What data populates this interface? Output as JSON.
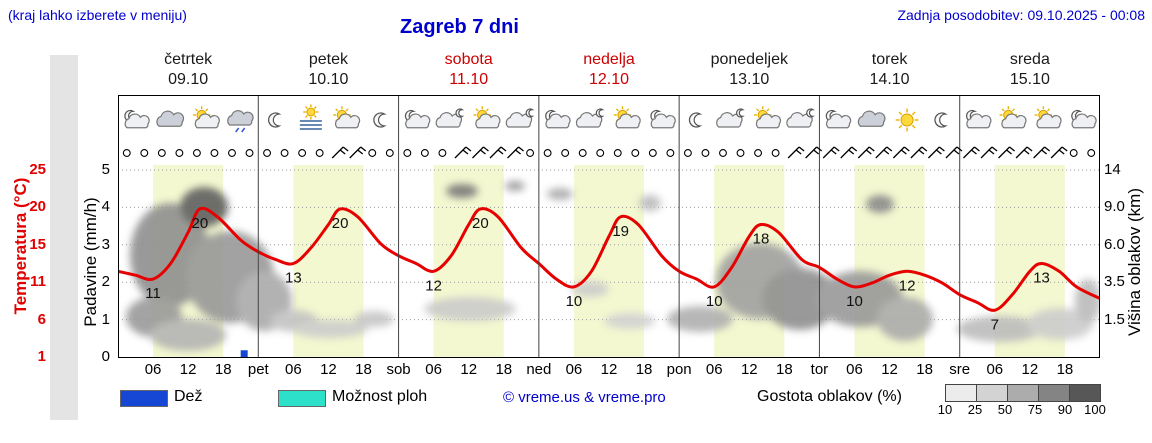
{
  "header": {
    "hint": "(kraj lahko izberete v meniju)",
    "title": "Zagreb 7 dni",
    "updated": "Zadnja posodobitev: 09.10.2025 - 00:08"
  },
  "colors": {
    "link_blue": "#0000cd",
    "temp_red": "#e00000",
    "weekend_red": "#cc0000",
    "rain_blue": "#1546d4",
    "showers_cyan": "#2ce0ca",
    "day_band_yellow": "#f4f8d0",
    "grid_gray": "#999999"
  },
  "days": [
    {
      "name": "četrtek",
      "date": "09.10",
      "weekend": false,
      "icons": [
        "moon-cloud",
        "cloud",
        "sun-cloud",
        "cloud-drizzle"
      ]
    },
    {
      "name": "petek",
      "date": "10.10",
      "weekend": false,
      "icons": [
        "moon",
        "fog-sun",
        "sun-cloud",
        "moon"
      ]
    },
    {
      "name": "sobota",
      "date": "11.10",
      "weekend": true,
      "icons": [
        "moon-cloud",
        "cloud-moon",
        "sun-cloud",
        "cloud-moon"
      ]
    },
    {
      "name": "nedelja",
      "date": "12.10",
      "weekend": true,
      "icons": [
        "moon-cloud",
        "cloud-moon",
        "sun-cloud",
        "moon-cloud"
      ]
    },
    {
      "name": "ponedeljek",
      "date": "13.10",
      "weekend": false,
      "icons": [
        "moon",
        "cloud-moon",
        "sun-cloud",
        "cloud-moon"
      ]
    },
    {
      "name": "torek",
      "date": "14.10",
      "weekend": false,
      "icons": [
        "moon-cloud",
        "cloud",
        "sun",
        "moon"
      ]
    },
    {
      "name": "sreda",
      "date": "15.10",
      "weekend": false,
      "icons": [
        "moon-cloud",
        "sun-cloud",
        "sun-cloud",
        "moon-cloud"
      ]
    }
  ],
  "axes": {
    "temp_label": "Temperatura (°C)",
    "temp_ticks": [
      "25",
      "20",
      "15",
      "11",
      "6",
      "1"
    ],
    "precip_label": "Padavine (mm/h)",
    "precip_ticks": [
      "5",
      "4",
      "3",
      "2",
      "1",
      "0"
    ],
    "cloud_label": "Višina oblakov (km)",
    "cloud_ticks": [
      "14",
      "9.0",
      "6.0",
      "3.5",
      "1.5"
    ],
    "time_ticks": [
      "06",
      "12",
      "18"
    ],
    "day_abbrevs": [
      "pet",
      "sob",
      "ned",
      "pon",
      "tor",
      "sre"
    ]
  },
  "legend": {
    "rain": "Dež",
    "showers": "Možnost ploh",
    "credit": "© vreme.us & vreme.pro",
    "cloud_density": "Gostota oblakov (%)",
    "density_ticks": [
      "10",
      "25",
      "50",
      "75",
      "90",
      "100"
    ],
    "density_colors": [
      "#ececec",
      "#d3d3d3",
      "#acacac",
      "#848484",
      "#575757"
    ]
  },
  "chart_data": {
    "type": "line",
    "title": "Zagreb 7 dni",
    "x_unit": "hours",
    "x_range": [
      0,
      168
    ],
    "ylim_precip": [
      0,
      5
    ],
    "temp_series": {
      "name": "Temperatura (°C)",
      "color": "#e60000",
      "points": [
        [
          0,
          12
        ],
        [
          3,
          11.5
        ],
        [
          6,
          11
        ],
        [
          9,
          13
        ],
        [
          12,
          17
        ],
        [
          14,
          20
        ],
        [
          17,
          19
        ],
        [
          21,
          16
        ],
        [
          24,
          14.5
        ],
        [
          27,
          13.5
        ],
        [
          30,
          13
        ],
        [
          33,
          15
        ],
        [
          36,
          18
        ],
        [
          38,
          20
        ],
        [
          41,
          19
        ],
        [
          45,
          15.5
        ],
        [
          48,
          14
        ],
        [
          51,
          13
        ],
        [
          54,
          12
        ],
        [
          57,
          14
        ],
        [
          60,
          18
        ],
        [
          62,
          20
        ],
        [
          65,
          19
        ],
        [
          69,
          15
        ],
        [
          72,
          13
        ],
        [
          75,
          11
        ],
        [
          78,
          10
        ],
        [
          81,
          12
        ],
        [
          84,
          16.5
        ],
        [
          86,
          19
        ],
        [
          89,
          18
        ],
        [
          93,
          14
        ],
        [
          96,
          12
        ],
        [
          99,
          11
        ],
        [
          102,
          10
        ],
        [
          105,
          12.5
        ],
        [
          108,
          16.5
        ],
        [
          110,
          18
        ],
        [
          113,
          17
        ],
        [
          117,
          13.5
        ],
        [
          120,
          12.5
        ],
        [
          123,
          11
        ],
        [
          126,
          10
        ],
        [
          129,
          10.5
        ],
        [
          132,
          11.5
        ],
        [
          135,
          12
        ],
        [
          138,
          11.5
        ],
        [
          141,
          10.5
        ],
        [
          144,
          9
        ],
        [
          147,
          8
        ],
        [
          150,
          7
        ],
        [
          153,
          9
        ],
        [
          156,
          12
        ],
        [
          158,
          13
        ],
        [
          161,
          12
        ],
        [
          164,
          10
        ],
        [
          168,
          8.5
        ]
      ]
    },
    "temp_labels": [
      {
        "t": 6,
        "v": 11
      },
      {
        "t": 14,
        "v": 20
      },
      {
        "t": 30,
        "v": 13
      },
      {
        "t": 38,
        "v": 20
      },
      {
        "t": 54,
        "v": 12
      },
      {
        "t": 62,
        "v": 20
      },
      {
        "t": 78,
        "v": 10
      },
      {
        "t": 86,
        "v": 19
      },
      {
        "t": 102,
        "v": 10
      },
      {
        "t": 110,
        "v": 18
      },
      {
        "t": 126,
        "v": 10
      },
      {
        "t": 135,
        "v": 12
      },
      {
        "t": 150,
        "v": 7
      },
      {
        "t": 158,
        "v": 13
      }
    ],
    "precip_bars": [
      {
        "t": 21.5,
        "v": 0.18
      }
    ],
    "wind": [
      "o",
      "o",
      "o",
      "o",
      "o",
      "o",
      "o",
      "o",
      "o",
      "o",
      "o",
      "o",
      "b",
      "b",
      "o",
      "o",
      "o",
      "o",
      "o",
      "b",
      "b",
      "b",
      "b",
      "o",
      "o",
      "o",
      "o",
      "o",
      "o",
      "o",
      "o",
      "o",
      "o",
      "o",
      "o",
      "o",
      "o",
      "o",
      "b",
      "b",
      "b",
      "b",
      "b",
      "b",
      "b",
      "b",
      "b",
      "b",
      "b",
      "b",
      "b",
      "b",
      "b",
      "b",
      "o",
      "o"
    ],
    "cloud_patches": [
      {
        "x": 52,
        "y": 160,
        "rx": 40,
        "ry": 52,
        "c": "#8f8f8f"
      },
      {
        "x": 86,
        "y": 112,
        "rx": 24,
        "ry": 20,
        "c": "#5f5f5f"
      },
      {
        "x": 112,
        "y": 182,
        "rx": 44,
        "ry": 46,
        "c": "#989898"
      },
      {
        "x": 146,
        "y": 206,
        "rx": 28,
        "ry": 30,
        "c": "#aaaaaa"
      },
      {
        "x": 36,
        "y": 222,
        "rx": 28,
        "ry": 20,
        "c": "#9a9a9a"
      },
      {
        "x": 70,
        "y": 240,
        "rx": 38,
        "ry": 16,
        "c": "#b4b4b4"
      },
      {
        "x": 176,
        "y": 226,
        "rx": 24,
        "ry": 11,
        "c": "#c2c2c2"
      },
      {
        "x": 212,
        "y": 234,
        "rx": 38,
        "ry": 9,
        "c": "#cccccc"
      },
      {
        "x": 256,
        "y": 224,
        "rx": 20,
        "ry": 8,
        "c": "#c6c6c6"
      },
      {
        "x": 344,
        "y": 96,
        "rx": 16,
        "ry": 7,
        "c": "#777777"
      },
      {
        "x": 352,
        "y": 214,
        "rx": 46,
        "ry": 12,
        "c": "#cbcbcb"
      },
      {
        "x": 397,
        "y": 91,
        "rx": 10,
        "ry": 5,
        "c": "#999999"
      },
      {
        "x": 442,
        "y": 99,
        "rx": 13,
        "ry": 6,
        "c": "#aaaaaa"
      },
      {
        "x": 472,
        "y": 194,
        "rx": 19,
        "ry": 8,
        "c": "#cccccc"
      },
      {
        "x": 512,
        "y": 226,
        "rx": 26,
        "ry": 8,
        "c": "#d2d2d2"
      },
      {
        "x": 532,
        "y": 108,
        "rx": 11,
        "ry": 8,
        "c": "#bbbbbb"
      },
      {
        "x": 582,
        "y": 224,
        "rx": 33,
        "ry": 13,
        "c": "#b0b0b0"
      },
      {
        "x": 642,
        "y": 186,
        "rx": 44,
        "ry": 38,
        "c": "#a0a0a0"
      },
      {
        "x": 682,
        "y": 204,
        "rx": 38,
        "ry": 31,
        "c": "#8f8f8f"
      },
      {
        "x": 742,
        "y": 204,
        "rx": 43,
        "ry": 28,
        "c": "#999999"
      },
      {
        "x": 762,
        "y": 109,
        "rx": 14,
        "ry": 9,
        "c": "#8a8a8a"
      },
      {
        "x": 787,
        "y": 224,
        "rx": 28,
        "ry": 22,
        "c": "#ababab"
      },
      {
        "x": 882,
        "y": 234,
        "rx": 43,
        "ry": 13,
        "c": "#bcbcbc"
      },
      {
        "x": 942,
        "y": 229,
        "rx": 33,
        "ry": 16,
        "c": "#cccccc"
      },
      {
        "x": 970,
        "y": 206,
        "rx": 13,
        "ry": 22,
        "c": "#bbbbbb"
      }
    ]
  }
}
